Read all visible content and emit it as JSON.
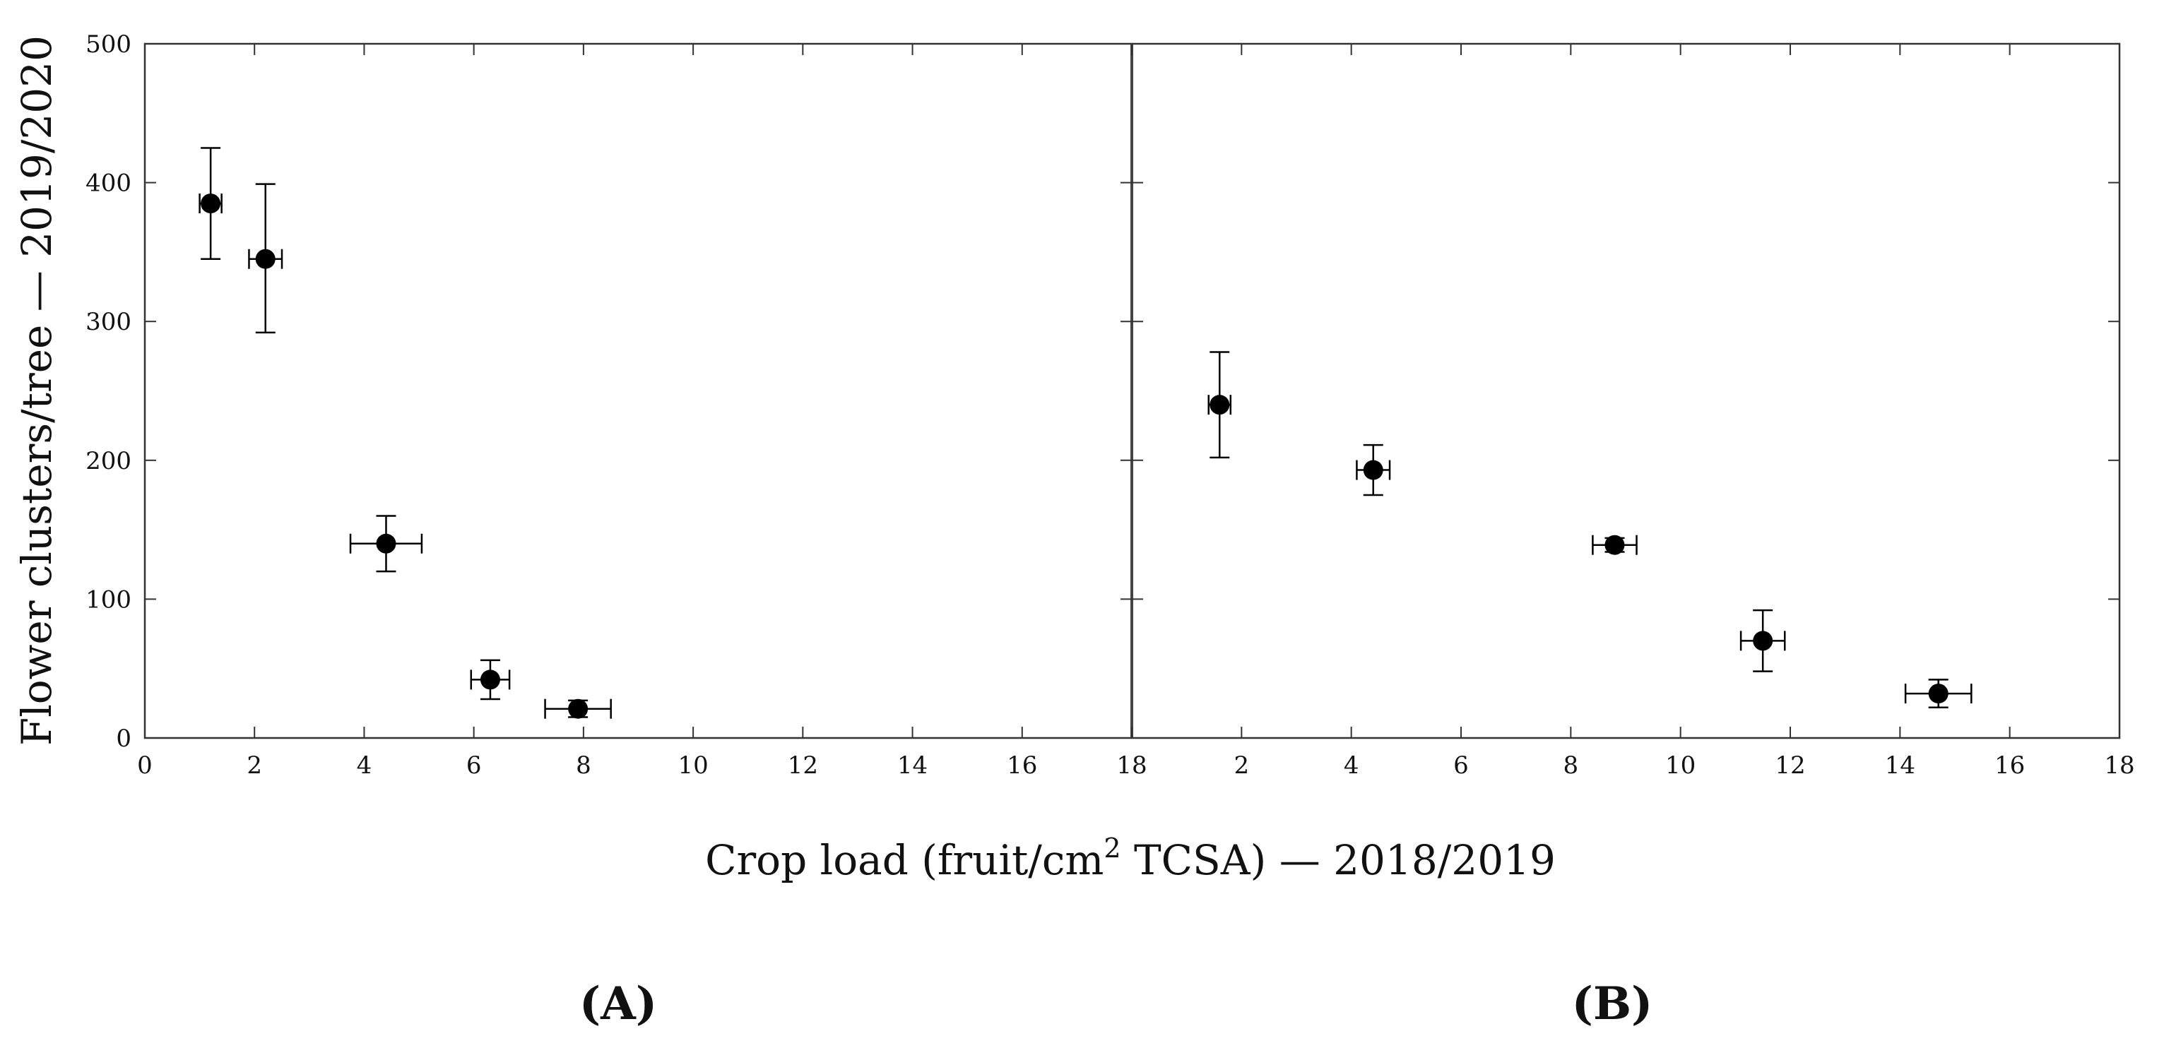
{
  "chart_data": {
    "type": "scatter",
    "ylabel": "Flower clusters/tree — 2019/2020",
    "xlabel": {
      "prefix": "Crop load (fruit/cm",
      "sup": "2",
      "suffix": " TCSA) — 2018/2019"
    },
    "ylim": [
      0,
      500
    ],
    "yticks": [
      "0",
      "100",
      "200",
      "300",
      "400",
      "500"
    ],
    "grid": false,
    "legend": "none",
    "marker_color": "#000000",
    "panels": [
      {
        "label": "(A)",
        "xlim": [
          0,
          18
        ],
        "xticks": [
          "0",
          "2",
          "4",
          "6",
          "8",
          "10",
          "12",
          "14",
          "16",
          "18"
        ],
        "points": [
          {
            "x": 1.2,
            "y": 385,
            "xerr": 0.2,
            "yerr_low": 40,
            "yerr_high": 40
          },
          {
            "x": 2.2,
            "y": 345,
            "xerr": 0.3,
            "yerr_low": 53,
            "yerr_high": 54
          },
          {
            "x": 4.4,
            "y": 140,
            "xerr": 0.65,
            "yerr_low": 20,
            "yerr_high": 20
          },
          {
            "x": 6.3,
            "y": 42,
            "xerr": 0.35,
            "yerr_low": 14,
            "yerr_high": 14
          },
          {
            "x": 7.9,
            "y": 21,
            "xerr": 0.6,
            "yerr_low": 6,
            "yerr_high": 6
          }
        ]
      },
      {
        "label": "(B)",
        "xlim": [
          0,
          18
        ],
        "xticks": [
          "2",
          "4",
          "6",
          "8",
          "10",
          "12",
          "14",
          "16",
          "18"
        ],
        "points": [
          {
            "x": 1.6,
            "y": 240,
            "xerr": 0.2,
            "yerr_low": 38,
            "yerr_high": 38
          },
          {
            "x": 4.4,
            "y": 193,
            "xerr": 0.3,
            "yerr_low": 18,
            "yerr_high": 18
          },
          {
            "x": 8.8,
            "y": 139,
            "xerr": 0.4,
            "yerr_low": 5,
            "yerr_high": 5
          },
          {
            "x": 11.5,
            "y": 70,
            "xerr": 0.4,
            "yerr_low": 22,
            "yerr_high": 22
          },
          {
            "x": 14.7,
            "y": 32,
            "xerr": 0.6,
            "yerr_low": 10,
            "yerr_high": 10
          }
        ]
      }
    ]
  }
}
